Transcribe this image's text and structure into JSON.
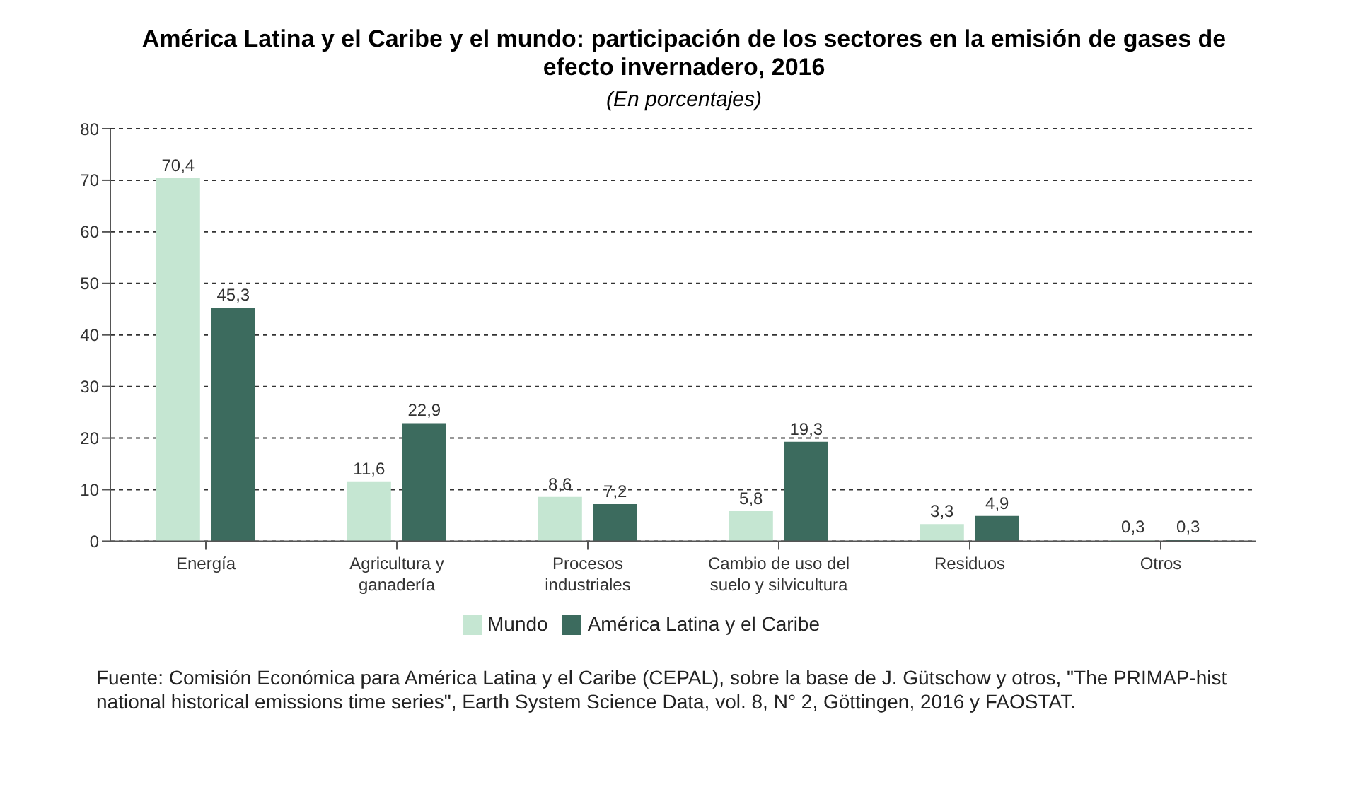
{
  "chart_data": {
    "type": "bar",
    "title": "América Latina y el Caribe y el mundo: participación de los sectores en la emisión de gases de efecto invernadero, 2016",
    "subtitle": "(En porcentajes)",
    "categories": [
      "Energía",
      "Agricultura y ganadería",
      "Procesos industriales",
      "Cambio de uso del suelo y silvicultura",
      "Residuos",
      "Otros"
    ],
    "series": [
      {
        "name": "Mundo",
        "color": "#c5e6d2",
        "values": [
          70.4,
          11.6,
          8.6,
          5.8,
          3.3,
          0.3
        ],
        "value_labels": [
          "70,4",
          "11,6",
          "8,6",
          "5,8",
          "3,3",
          "0,3"
        ]
      },
      {
        "name": "América Latina y el Caribe",
        "color": "#3c6b5e",
        "values": [
          45.3,
          22.9,
          7.2,
          19.3,
          4.9,
          0.3
        ],
        "value_labels": [
          "45,3",
          "22,9",
          "7,2",
          "19,3",
          "4,9",
          "0,3"
        ]
      }
    ],
    "ylim": [
      0,
      80
    ],
    "yticks": [
      0,
      10,
      20,
      30,
      40,
      50,
      60,
      70,
      80
    ],
    "grid": "y",
    "legend": "bottom",
    "annotations": [
      "Fuente: Comisión Económica para América Latina y el Caribe (CEPAL), sobre la base de J. Gütschow y otros, \"The PRIMAP-hist national historical emissions time series\", Earth System Science Data, vol. 8, N° 2, Göttingen, 2016 y FAOSTAT."
    ]
  }
}
